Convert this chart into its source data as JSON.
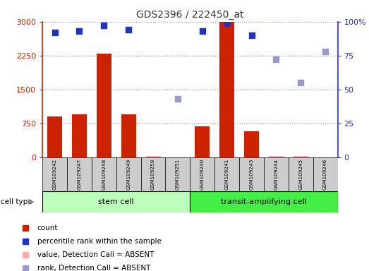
{
  "title": "GDS2396 / 222450_at",
  "samples": [
    "GSM109242",
    "GSM109247",
    "GSM109248",
    "GSM109249",
    "GSM109250",
    "GSM109251",
    "GSM109240",
    "GSM109241",
    "GSM109243",
    "GSM109244",
    "GSM109245",
    "GSM109246"
  ],
  "cell_types": [
    "stem cell",
    "stem cell",
    "stem cell",
    "stem cell",
    "stem cell",
    "stem cell",
    "transit-amplifying cell",
    "transit-amplifying cell",
    "transit-amplifying cell",
    "transit-amplifying cell",
    "transit-amplifying cell",
    "transit-amplifying cell"
  ],
  "count_values": [
    900,
    950,
    2300,
    950,
    0,
    0,
    680,
    3000,
    580,
    0,
    0,
    0
  ],
  "count_absent": [
    false,
    false,
    false,
    false,
    true,
    false,
    false,
    false,
    false,
    true,
    true,
    false
  ],
  "value_absent": [
    null,
    null,
    null,
    null,
    30,
    null,
    null,
    null,
    null,
    30,
    20,
    null
  ],
  "percentile_values": [
    92,
    93,
    97,
    94,
    null,
    null,
    93,
    99,
    90,
    null,
    null,
    null
  ],
  "rank_absent": [
    null,
    null,
    null,
    null,
    null,
    43,
    null,
    null,
    null,
    72,
    55,
    78
  ],
  "ylim_left": [
    0,
    3000
  ],
  "ylim_right": [
    0,
    100
  ],
  "yticks_left": [
    0,
    750,
    1500,
    2250,
    3000
  ],
  "yticks_right": [
    0,
    25,
    50,
    75,
    100
  ],
  "bar_color": "#cc2200",
  "bar_absent_color": "#ffaaaa",
  "dot_color": "#2233bb",
  "dot_absent_color": "#9999cc",
  "stem_cell_color": "#bbffbb",
  "transit_cell_color": "#44ee44",
  "bg_color": "#cccccc",
  "title_color": "#333333",
  "left_axis_color": "#cc2200",
  "right_axis_color": "#2233bb",
  "legend_items": [
    {
      "color": "#cc2200",
      "label": "count"
    },
    {
      "color": "#2233bb",
      "label": "percentile rank within the sample"
    },
    {
      "color": "#ffaaaa",
      "label": "value, Detection Call = ABSENT"
    },
    {
      "color": "#9999cc",
      "label": "rank, Detection Call = ABSENT"
    }
  ]
}
